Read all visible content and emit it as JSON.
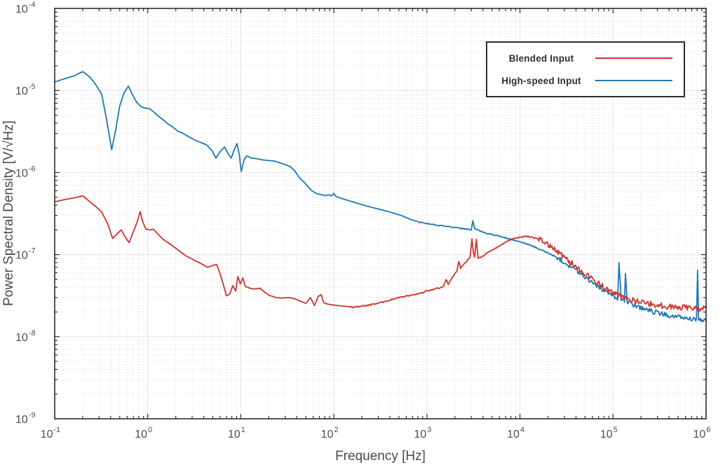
{
  "chart_data": {
    "type": "line",
    "title": "",
    "xlabel": "Frequency [Hz]",
    "ylabel": "Power Spectral Density [V/√Hz]",
    "x_scale": "log",
    "y_scale": "log",
    "xlim": [
      0.1,
      1000000
    ],
    "ylim": [
      1e-09,
      0.0001
    ],
    "x_tick_exponents": [
      -1,
      0,
      1,
      2,
      3,
      4,
      5,
      6
    ],
    "y_tick_exponents": [
      -4,
      -5,
      -6,
      -7,
      -8,
      -9
    ],
    "grid": {
      "major": true,
      "minor": true,
      "major_color": "#e7e2ea",
      "minor_color": "#d9d2e2",
      "minor_style": "dotted"
    },
    "axis_color": "#2d2d2d",
    "tick_label_color": "#4f4f4f",
    "legend": {
      "position": "top-right",
      "entries": [
        {
          "label": "Blended Input",
          "color": "#cf342c"
        },
        {
          "label": "High-speed Input",
          "color": "#1f77b4"
        }
      ]
    },
    "series": [
      {
        "name": "Blended Input",
        "color": "#cf342c",
        "width": 1.8,
        "light_noisy_above_hz": 150,
        "light_jitter_log": 0.008,
        "noisy_above_hz": 16000,
        "jitter_log": 0.034,
        "points": [
          [
            0.1,
            4.4e-07
          ],
          [
            0.13,
            4.7e-07
          ],
          [
            0.16,
            4.9e-07
          ],
          [
            0.2,
            5.2e-07
          ],
          [
            0.24,
            4.4e-07
          ],
          [
            0.28,
            3.8e-07
          ],
          [
            0.32,
            3.3e-07
          ],
          [
            0.37,
            2.4e-07
          ],
          [
            0.42,
            1.57e-07
          ],
          [
            0.47,
            1.8e-07
          ],
          [
            0.52,
            2e-07
          ],
          [
            0.57,
            1.65e-07
          ],
          [
            0.63,
            1.4e-07
          ],
          [
            0.7,
            1.9e-07
          ],
          [
            0.77,
            2.5e-07
          ],
          [
            0.83,
            3.35e-07
          ],
          [
            0.88,
            2.55e-07
          ],
          [
            0.95,
            2.05e-07
          ],
          [
            1.05,
            2e-07
          ],
          [
            1.15,
            2.05e-07
          ],
          [
            1.3,
            1.75e-07
          ],
          [
            1.45,
            1.55e-07
          ],
          [
            1.65,
            1.4e-07
          ],
          [
            1.85,
            1.28e-07
          ],
          [
            2.2,
            1.1e-07
          ],
          [
            2.6,
            9.6e-08
          ],
          [
            3.2,
            8.5e-08
          ],
          [
            3.8,
            7.7e-08
          ],
          [
            4.4,
            7e-08
          ],
          [
            5.0,
            7.4e-08
          ],
          [
            5.5,
            7.6e-08
          ],
          [
            6.0,
            5.8e-08
          ],
          [
            6.5,
            4.3e-08
          ],
          [
            7.0,
            3.15e-08
          ],
          [
            7.6,
            3.3e-08
          ],
          [
            8.2,
            4.2e-08
          ],
          [
            8.8,
            3.6e-08
          ],
          [
            9.3,
            5.4e-08
          ],
          [
            9.9,
            4.4e-08
          ],
          [
            10.5,
            5.2e-08
          ],
          [
            11.2,
            4.1e-08
          ],
          [
            12.5,
            3.9e-08
          ],
          [
            14,
            3.8e-08
          ],
          [
            16,
            3.9e-08
          ],
          [
            18,
            3.5e-08
          ],
          [
            20,
            3.2e-08
          ],
          [
            24,
            3e-08
          ],
          [
            28,
            2.95e-08
          ],
          [
            33,
            3e-08
          ],
          [
            38,
            2.9e-08
          ],
          [
            44,
            2.7e-08
          ],
          [
            50,
            2.55e-08
          ],
          [
            56,
            3e-08
          ],
          [
            62,
            2.4e-08
          ],
          [
            68,
            3.1e-08
          ],
          [
            73,
            3.25e-08
          ],
          [
            78,
            2.6e-08
          ],
          [
            85,
            2.5e-08
          ],
          [
            95,
            2.45e-08
          ],
          [
            110,
            2.4e-08
          ],
          [
            130,
            2.35e-08
          ],
          [
            160,
            2.3e-08
          ],
          [
            200,
            2.35e-08
          ],
          [
            250,
            2.45e-08
          ],
          [
            320,
            2.6e-08
          ],
          [
            400,
            2.8e-08
          ],
          [
            500,
            3e-08
          ],
          [
            630,
            3.15e-08
          ],
          [
            800,
            3.3e-08
          ],
          [
            1000,
            3.6e-08
          ],
          [
            1250,
            3.85e-08
          ],
          [
            1500,
            4e-08
          ],
          [
            1600,
            5e-08
          ],
          [
            1700,
            4.4e-08
          ],
          [
            1900,
            5.4e-08
          ],
          [
            2100,
            6.3e-08
          ],
          [
            2200,
            8.2e-08
          ],
          [
            2300,
            6.9e-08
          ],
          [
            2600,
            8e-08
          ],
          [
            2900,
            9.2e-08
          ],
          [
            3050,
            1.58e-07
          ],
          [
            3150,
            1.05e-07
          ],
          [
            3250,
            9.3e-08
          ],
          [
            3400,
            1.55e-07
          ],
          [
            3550,
            9e-08
          ],
          [
            3800,
            9.3e-08
          ],
          [
            4300,
            1.02e-07
          ],
          [
            5000,
            1.13e-07
          ],
          [
            6000,
            1.28e-07
          ],
          [
            7200,
            1.45e-07
          ],
          [
            8500,
            1.57e-07
          ],
          [
            10000.0,
            1.64e-07
          ],
          [
            11500.0,
            1.67e-07
          ],
          [
            13500.0,
            1.64e-07
          ],
          [
            16000.0,
            1.55e-07
          ],
          [
            19000.0,
            1.4e-07
          ],
          [
            23000.0,
            1.2e-07
          ],
          [
            28000.0,
            1e-07
          ],
          [
            34000.0,
            8.3e-08
          ],
          [
            42000.0,
            6.8e-08
          ],
          [
            52000.0,
            5.7e-08
          ],
          [
            65000.0,
            4.8e-08
          ],
          [
            80000.0,
            4e-08
          ],
          [
            100000.0,
            3.4e-08
          ],
          [
            125000.0,
            3.05e-08
          ],
          [
            160000.0,
            2.8e-08
          ],
          [
            200000.0,
            2.65e-08
          ],
          [
            260000.0,
            2.5e-08
          ],
          [
            330000.0,
            2.4e-08
          ],
          [
            420000.0,
            2.32e-08
          ],
          [
            550000.0,
            2.28e-08
          ],
          [
            700000.0,
            2.25e-08
          ],
          [
            850000.0,
            2.22e-08
          ],
          [
            1000000.0,
            2.2e-08
          ]
        ]
      },
      {
        "name": "High-speed Input",
        "color": "#1f77b4",
        "width": 1.8,
        "light_noisy_above_hz": 800,
        "light_jitter_log": 0.007,
        "noisy_above_hz": 25000,
        "jitter_log": 0.028,
        "points": [
          [
            0.1,
            1.27e-05
          ],
          [
            0.13,
            1.4e-05
          ],
          [
            0.16,
            1.5e-05
          ],
          [
            0.2,
            1.7e-05
          ],
          [
            0.24,
            1.45e-05
          ],
          [
            0.28,
            1.15e-05
          ],
          [
            0.32,
            9e-06
          ],
          [
            0.36,
            4.5e-06
          ],
          [
            0.41,
            1.9e-06
          ],
          [
            0.45,
            3.2e-06
          ],
          [
            0.5,
            6.5e-06
          ],
          [
            0.56,
            9.5e-06
          ],
          [
            0.62,
            1.13e-05
          ],
          [
            0.68,
            9e-06
          ],
          [
            0.76,
            7.2e-06
          ],
          [
            0.85,
            6.3e-06
          ],
          [
            0.95,
            6.1e-06
          ],
          [
            1.05,
            6e-06
          ],
          [
            1.2,
            5.3e-06
          ],
          [
            1.35,
            4.7e-06
          ],
          [
            1.5,
            4.3e-06
          ],
          [
            1.65,
            3.9e-06
          ],
          [
            1.85,
            3.6e-06
          ],
          [
            2.1,
            3.2e-06
          ],
          [
            2.4,
            3e-06
          ],
          [
            2.8,
            2.7e-06
          ],
          [
            3.3,
            2.45e-06
          ],
          [
            3.8,
            2.3e-06
          ],
          [
            4.3,
            2.17e-06
          ],
          [
            4.9,
            1.85e-06
          ],
          [
            5.4,
            1.5e-06
          ],
          [
            6.0,
            1.8e-06
          ],
          [
            6.7,
            2.05e-06
          ],
          [
            7.3,
            1.7e-06
          ],
          [
            7.9,
            1.5e-06
          ],
          [
            8.5,
            1.9e-06
          ],
          [
            9.1,
            2.25e-06
          ],
          [
            9.6,
            1.7e-06
          ],
          [
            10.1,
            1.03e-06
          ],
          [
            10.9,
            1.45e-06
          ],
          [
            11.6,
            1.6e-06
          ],
          [
            13,
            1.5e-06
          ],
          [
            15,
            1.47e-06
          ],
          [
            17,
            1.43e-06
          ],
          [
            20,
            1.4e-06
          ],
          [
            23,
            1.38e-06
          ],
          [
            26,
            1.32e-06
          ],
          [
            30,
            1.25e-06
          ],
          [
            34,
            1.18e-06
          ],
          [
            38,
            1.05e-06
          ],
          [
            41,
            9.2e-07
          ],
          [
            44,
            8.3e-07
          ],
          [
            48,
            7.6e-07
          ],
          [
            53,
            6.7e-07
          ],
          [
            58,
            6e-07
          ],
          [
            64,
            5.6e-07
          ],
          [
            72,
            5.4e-07
          ],
          [
            80,
            5.25e-07
          ],
          [
            88,
            5.35e-07
          ],
          [
            95,
            5.2e-07
          ],
          [
            100,
            5.6e-07
          ],
          [
            105,
            5.15e-07
          ],
          [
            120,
            4.85e-07
          ],
          [
            140,
            4.6e-07
          ],
          [
            170,
            4.3e-07
          ],
          [
            210,
            4e-07
          ],
          [
            260,
            3.75e-07
          ],
          [
            330,
            3.5e-07
          ],
          [
            420,
            3.25e-07
          ],
          [
            530,
            3e-07
          ],
          [
            660,
            2.7e-07
          ],
          [
            820,
            2.5e-07
          ],
          [
            1000,
            2.38e-07
          ],
          [
            1300,
            2.28e-07
          ],
          [
            1700,
            2.2e-07
          ],
          [
            2100,
            2.12e-07
          ],
          [
            2600,
            2.06e-07
          ],
          [
            3000,
            2e-07
          ],
          [
            3120,
            2.6e-07
          ],
          [
            3250,
            2.08e-07
          ],
          [
            3700,
            1.95e-07
          ],
          [
            4400,
            1.82e-07
          ],
          [
            5300,
            1.73e-07
          ],
          [
            6600,
            1.63e-07
          ],
          [
            8000,
            1.53e-07
          ],
          [
            10000.0,
            1.43e-07
          ],
          [
            13000.0,
            1.3e-07
          ],
          [
            17000.0,
            1.14e-07
          ],
          [
            21000.0,
            1.02e-07
          ],
          [
            27000.0,
            8.8e-08
          ],
          [
            35000.0,
            7.2e-08
          ],
          [
            45000.0,
            5.9e-08
          ],
          [
            56000.0,
            4.9e-08
          ],
          [
            70000.0,
            4.1e-08
          ],
          [
            85000.0,
            3.5e-08
          ],
          [
            100000.0,
            3.15e-08
          ],
          [
            112000.0,
            2.95e-08
          ],
          [
            116000.0,
            8.2e-08
          ],
          [
            122000.0,
            2.85e-08
          ],
          [
            133000.0,
            2.8e-08
          ],
          [
            136000.0,
            6.1e-08
          ],
          [
            142000.0,
            2.7e-08
          ],
          [
            160000.0,
            2.5e-08
          ],
          [
            190000.0,
            2.3e-08
          ],
          [
            230000.0,
            2.15e-08
          ],
          [
            280000.0,
            2e-08
          ],
          [
            350000.0,
            1.88e-08
          ],
          [
            440000.0,
            1.78e-08
          ],
          [
            550000.0,
            1.7e-08
          ],
          [
            700000.0,
            1.65e-08
          ],
          [
            790000.0,
            1.62e-08
          ],
          [
            810000.0,
            6.1e-08
          ],
          [
            830000.0,
            1.62e-08
          ],
          [
            1000000.0,
            1.58e-08
          ]
        ]
      }
    ]
  }
}
